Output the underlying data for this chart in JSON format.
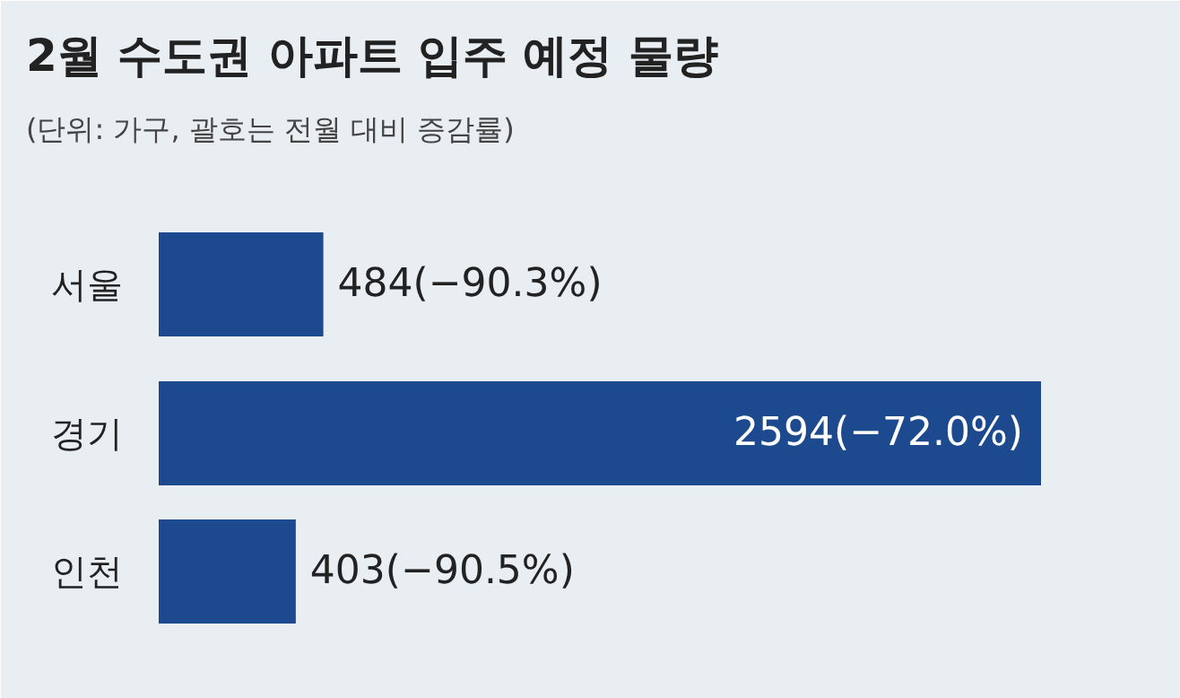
{
  "chart_data": {
    "type": "bar",
    "orientation": "horizontal",
    "title": "2월 수도권 아파트 입주 예정 물량",
    "subtitle": "(단위: 가구, 괄호는 전월 대비 증감률)",
    "categories": [
      "서울",
      "경기",
      "인천"
    ],
    "values": [
      484,
      2594,
      403
    ],
    "color": "#1d4a8e",
    "value_labels": [
      "484(−90.3%)",
      "2594(−72.0%)",
      "403(−90.5%)"
    ]
  }
}
